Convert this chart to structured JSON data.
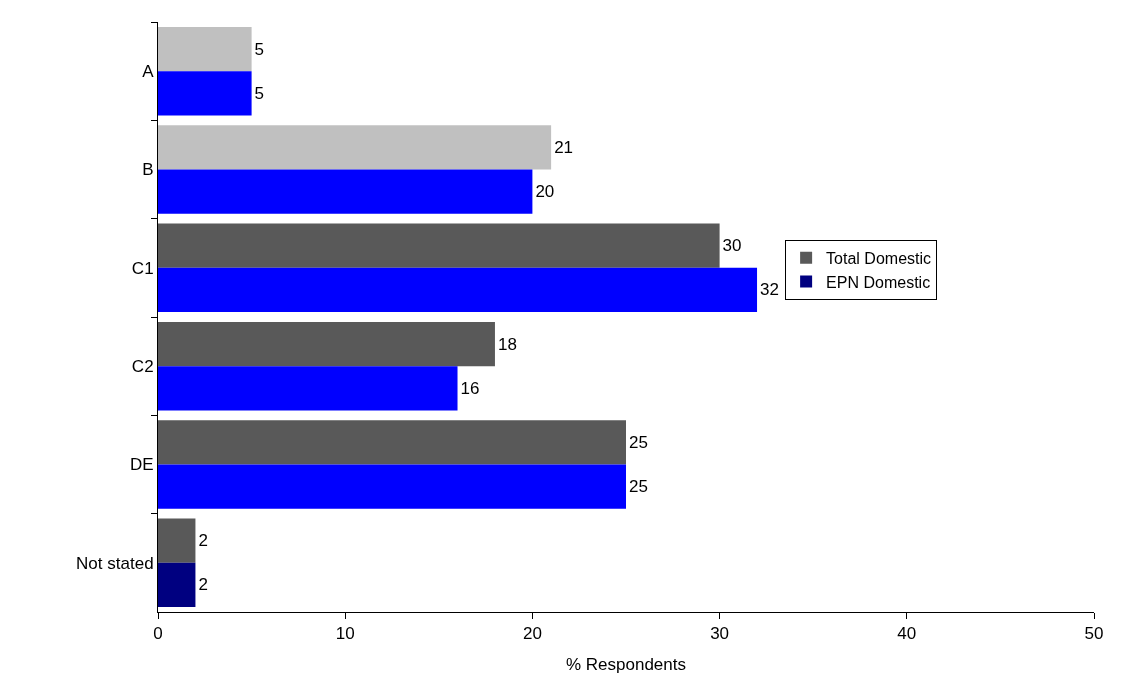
{
  "chart_data": {
    "type": "bar",
    "orientation": "horizontal",
    "xlabel": "% Respondents",
    "categories": [
      "A",
      "B",
      "C1",
      "C2",
      "DE",
      "Not stated"
    ],
    "series": [
      {
        "name": "Total Domestic",
        "color": "#595959",
        "colors": [
          "#c0c0c0",
          "#c0c0c0",
          "#595959",
          "#595959",
          "#595959",
          "#595959"
        ],
        "values": [
          5,
          21,
          30,
          18,
          25,
          2
        ]
      },
      {
        "name": "EPN Domestic",
        "color": "#000080",
        "colors": [
          "#0000ff",
          "#0000ff",
          "#0000ff",
          "#0000ff",
          "#0000ff",
          "#000080"
        ],
        "values": [
          5,
          20,
          32,
          16,
          25,
          2
        ]
      }
    ],
    "xlim": [
      0,
      50
    ],
    "xticks": [
      0,
      10,
      20,
      30,
      40,
      50
    ],
    "data_labels": true,
    "legend": "right"
  }
}
